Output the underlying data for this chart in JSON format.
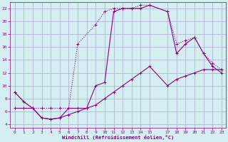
{
  "xlabel": "Windchill (Refroidissement éolien,°C)",
  "background_color": "#d4eef2",
  "grid_color": "#aaaacc",
  "line_color": "#880088",
  "xlim": [
    -0.5,
    23.5
  ],
  "ylim": [
    3.5,
    23
  ],
  "xticks": [
    0,
    1,
    2,
    3,
    4,
    5,
    6,
    7,
    8,
    9,
    10,
    11,
    12,
    13,
    14,
    15,
    17,
    18,
    19,
    20,
    21,
    22,
    23
  ],
  "yticks": [
    4,
    6,
    8,
    10,
    12,
    14,
    16,
    18,
    20,
    22
  ],
  "line1_x": [
    0,
    1,
    2,
    3,
    4,
    5,
    6,
    7,
    9,
    10,
    11,
    12,
    13,
    14,
    15,
    17,
    18,
    19,
    20,
    21,
    22,
    23
  ],
  "line1_y": [
    9.0,
    7.5,
    6.5,
    6.5,
    6.5,
    6.5,
    6.5,
    16.5,
    19.5,
    21.5,
    22.0,
    22.0,
    22.0,
    22.5,
    22.5,
    21.5,
    16.5,
    17.0,
    17.5,
    15.0,
    13.5,
    12.5
  ],
  "line2_x": [
    0,
    1,
    2,
    3,
    4,
    5,
    6,
    7,
    8,
    9,
    10,
    11,
    12,
    13,
    14,
    15,
    17,
    18,
    19,
    20,
    21,
    22,
    23
  ],
  "line2_y": [
    9.0,
    7.5,
    6.5,
    5.0,
    4.8,
    5.0,
    6.5,
    6.5,
    6.5,
    10.0,
    10.5,
    21.5,
    22.0,
    22.0,
    22.0,
    22.5,
    21.5,
    15.0,
    16.5,
    17.5,
    15.0,
    13.0,
    12.0
  ],
  "line3_x": [
    0,
    1,
    2,
    3,
    4,
    5,
    6,
    7,
    8,
    9,
    10,
    11,
    12,
    13,
    14,
    15,
    17,
    18,
    19,
    20,
    21,
    22,
    23
  ],
  "line3_y": [
    6.5,
    6.5,
    6.5,
    5.0,
    4.8,
    5.0,
    5.5,
    6.0,
    6.5,
    7.0,
    8.0,
    9.0,
    10.0,
    11.0,
    12.0,
    13.0,
    10.0,
    11.0,
    11.5,
    12.0,
    12.5,
    12.5,
    12.5
  ],
  "marker_size": 2.5,
  "line_width": 0.8
}
